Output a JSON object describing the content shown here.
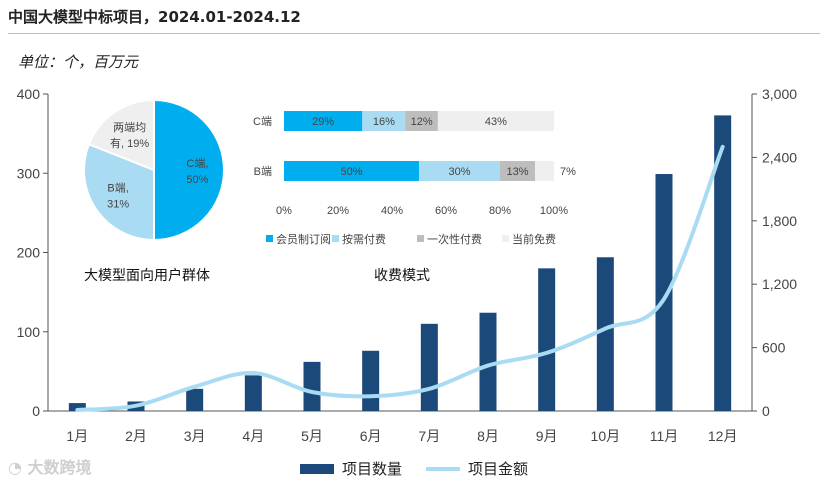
{
  "title": "中国大模型中标项目，2024.01-2024.12",
  "unit_label": "单位：个，百万元",
  "watermark": "大数跨境",
  "colors": {
    "bar": "#1b4a7a",
    "line": "#a9dcf2",
    "pie_c": "#00aeef",
    "pie_b": "#a9dcf2",
    "pie_both": "#efefef",
    "seg_gray": "#bdbdbd"
  },
  "chart_data": [
    {
      "type": "bar",
      "name": "main",
      "categories": [
        "1月",
        "2月",
        "3月",
        "4月",
        "5月",
        "6月",
        "7月",
        "8月",
        "9月",
        "10月",
        "11月",
        "12月"
      ],
      "series": [
        {
          "name": "项目数量",
          "axis": "left",
          "type": "bar",
          "values": [
            10,
            12,
            28,
            45,
            62,
            76,
            110,
            124,
            180,
            194,
            299,
            373
          ]
        },
        {
          "name": "项目金额",
          "axis": "right",
          "type": "line",
          "values": [
            10,
            50,
            230,
            360,
            180,
            140,
            210,
            430,
            550,
            780,
            1060,
            2500
          ]
        }
      ],
      "y_left": {
        "min": 0,
        "max": 400,
        "ticks": [
          0,
          100,
          200,
          300,
          400
        ],
        "tick_labels": [
          "0",
          "100",
          "200",
          "300",
          "400"
        ]
      },
      "y_right": {
        "min": 0,
        "max": 3000,
        "ticks": [
          0,
          600,
          1200,
          1800,
          2400,
          3000
        ],
        "tick_labels": [
          "0",
          "600",
          "1,200",
          "1,800",
          "2,400",
          "3,000"
        ]
      },
      "legend": [
        "项目数量",
        "项目金额"
      ]
    },
    {
      "type": "pie",
      "name": "user_groups",
      "title": "大模型面向用户群体",
      "slices": [
        {
          "name": "C端",
          "value": 50,
          "label_line1": "C端,",
          "label_line2": "50%"
        },
        {
          "name": "B端",
          "value": 31,
          "label_line1": "B端,",
          "label_line2": "31%"
        },
        {
          "name": "两端均有",
          "value": 19,
          "label_line1": "两端均",
          "label_line2": "有, 19%"
        }
      ]
    },
    {
      "type": "bar",
      "name": "pricing_models",
      "orientation": "horizontal-stacked",
      "title": "收费模式",
      "categories": [
        "C端",
        "B端"
      ],
      "series": [
        {
          "name": "会员制订阅",
          "values": [
            29,
            50
          ],
          "labels": [
            "29%",
            "50%"
          ]
        },
        {
          "name": "按需付费",
          "values": [
            16,
            30
          ],
          "labels": [
            "16%",
            "30%"
          ]
        },
        {
          "name": "一次性付费",
          "values": [
            12,
            13
          ],
          "labels": [
            "12%",
            "13%"
          ]
        },
        {
          "name": "当前免费",
          "values": [
            43,
            7
          ],
          "labels": [
            "43%",
            "7%"
          ]
        }
      ],
      "x_ticks": [
        "0%",
        "20%",
        "40%",
        "60%",
        "80%",
        "100%"
      ],
      "xlim": [
        0,
        100
      ]
    }
  ]
}
